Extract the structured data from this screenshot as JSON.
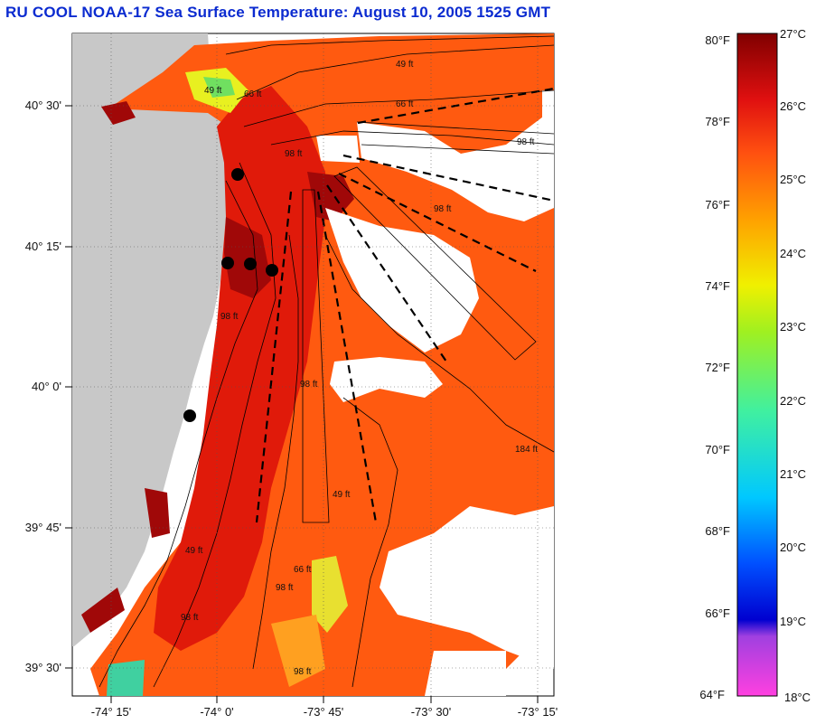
{
  "title": "RU COOL  NOAA-17  Sea Surface Temperature:  August 10, 2005 1525 GMT",
  "lat_labels": [
    "40° 30'",
    "40° 15'",
    "40° 0'",
    "39° 45'",
    "39° 30'"
  ],
  "lon_labels": [
    "-74° 15'",
    "-74° 0'",
    "-73° 45'",
    "-73° 30'",
    "-73° 15'"
  ],
  "depth_labels": [
    "49 ft",
    "66 ft",
    "98 ft",
    "98 ft",
    "49 ft",
    "98 ft",
    "66 ft",
    "184 ft",
    "98 ft",
    "49 ft",
    "66 ft",
    "98 ft",
    "98 ft",
    "98 ft",
    "98 ft",
    "49 ft"
  ],
  "colorbar": {
    "fahrenheit_labels": [
      "80°F",
      "78°F",
      "76°F",
      "74°F",
      "72°F",
      "70°F",
      "68°F",
      "66°F",
      "64°F"
    ],
    "celsius_labels": [
      "27°C",
      "26°C",
      "25°C",
      "24°C",
      "23°C",
      "22°C",
      "21°C",
      "20°C",
      "19°C",
      "18°C"
    ]
  },
  "colors": {
    "title": "#0b2bd0",
    "land": "#c8c8c8",
    "sst_warm": "#e01a0a",
    "sst_hot": "#a00808",
    "sst_orange": "#ff5a10"
  }
}
